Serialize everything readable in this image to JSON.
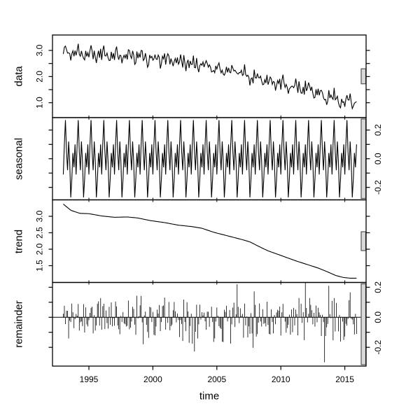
{
  "chart_data": {
    "type": "line",
    "description": "STL seasonal-trend decomposition plot with four stacked panels",
    "xlabel": "time",
    "x_start": 1993.0,
    "n_months": 276,
    "x_ticks": [
      1995,
      2000,
      2005,
      2010,
      2015
    ],
    "x_tick_labels": [
      "1995",
      "2000",
      "2005",
      "2010",
      "2015"
    ],
    "panels": [
      {
        "name": "data",
        "ylabel": "data",
        "style": "line",
        "label_side": "left",
        "ylim": [
          0.43,
          3.59
        ],
        "yticks": [
          1.0,
          1.5,
          2.0,
          2.5,
          3.0
        ],
        "ytick_labels": [
          "1.0",
          "",
          "2.0",
          "",
          "3.0"
        ]
      },
      {
        "name": "seasonal",
        "ylabel": "seasonal",
        "style": "line",
        "label_side": "right",
        "ylim": [
          -0.287,
          0.287
        ],
        "yticks": [
          -0.2,
          -0.1,
          0.0,
          0.1,
          0.2
        ],
        "ytick_labels": [
          "-0.2",
          "",
          "0.0",
          "",
          "0.2"
        ]
      },
      {
        "name": "trend",
        "ylabel": "trend",
        "style": "line",
        "label_side": "left",
        "ylim": [
          0.99,
          3.5
        ],
        "yticks": [
          1.5,
          2.0,
          2.5,
          3.0
        ],
        "ytick_labels": [
          "1.5",
          "2.0",
          "2.5",
          "3.0"
        ]
      },
      {
        "name": "remainder",
        "ylabel": "remainder",
        "style": "h",
        "label_side": "right",
        "ylim": [
          -0.325,
          0.232
        ],
        "yticks": [
          -0.2,
          -0.1,
          0.0,
          0.1,
          0.2
        ],
        "ytick_labels": [
          "-0.2",
          "",
          "0.0",
          "",
          "0.2"
        ]
      }
    ],
    "seasonal_monthly_pattern": [
      -0.11,
      0.1,
      0.27,
      0.05,
      -0.08,
      0.12,
      -0.02,
      -0.27,
      -0.14,
      0.04,
      -0.06,
      0.1
    ],
    "trend_knots": {
      "years": [
        1993.0,
        1993.6,
        1994.3,
        1995.0,
        1996.0,
        1997.0,
        1998.0,
        1998.8,
        1999.8,
        2000.9,
        2002.0,
        2003.0,
        2003.8,
        2004.8,
        2005.9,
        2007.0,
        2007.6,
        2008.3,
        2009.0,
        2009.8,
        2010.5,
        2011.3,
        2012.1,
        2012.9,
        2013.6,
        2014.3,
        2014.9,
        2015.4,
        2015.92
      ],
      "values": [
        3.37,
        3.18,
        3.09,
        3.08,
        3.01,
        2.97,
        2.98,
        2.95,
        2.87,
        2.81,
        2.73,
        2.69,
        2.64,
        2.51,
        2.4,
        2.29,
        2.22,
        2.08,
        1.95,
        1.84,
        1.74,
        1.63,
        1.53,
        1.43,
        1.32,
        1.2,
        1.14,
        1.12,
        1.12
      ]
    },
    "data_base_knots": {
      "years": [
        1993.0,
        1994,
        1995,
        1996,
        1997,
        1998,
        1999,
        2000,
        2001,
        2002,
        2003,
        2004,
        2005,
        2006,
        2007,
        2008,
        2009,
        2010,
        2011,
        2012,
        2013,
        2013.8,
        2014.5,
        2015.2,
        2015.92
      ],
      "values": [
        2.95,
        2.9,
        2.87,
        2.83,
        2.8,
        2.82,
        2.76,
        2.7,
        2.65,
        2.6,
        2.55,
        2.44,
        2.33,
        2.23,
        2.13,
        1.98,
        1.85,
        1.73,
        1.62,
        1.5,
        1.36,
        1.22,
        1.12,
        1.07,
        1.05
      ],
      "note": "trend mid-line of the observed data series; data = base + seasonal + remainder"
    },
    "remainder": {
      "type": "stochastic",
      "seed": 11,
      "amplitude": 0.16,
      "sd": 0.08,
      "range": [
        -0.3,
        0.23
      ],
      "outliers": [
        {
          "year": 2013.417,
          "value": -0.3
        },
        {
          "year": 2006.583,
          "value": 0.22
        },
        {
          "year": 2011.917,
          "value": 0.23
        }
      ]
    },
    "scale_bar_unit_range": 0.574,
    "colors": {
      "line": "#000000",
      "frame": "#000000",
      "scale_bar_fill": "#d9d9d9",
      "scale_bar_stroke": "#555555",
      "background": "#ffffff"
    }
  }
}
